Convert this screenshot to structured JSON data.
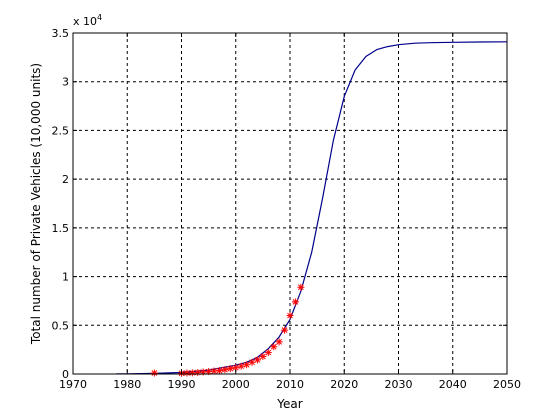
{
  "chart_data": {
    "type": "line",
    "xlabel": "Year",
    "ylabel": "Total number of Private Vehicles (10,000 units)",
    "y_multiplier_label": "x 10",
    "y_multiplier_exponent": "4",
    "xlim": [
      1970,
      2050
    ],
    "ylim": [
      0,
      3.5
    ],
    "y_scale_factor": 10000,
    "grid": true,
    "x_ticks": [
      1970,
      1980,
      1990,
      2000,
      2010,
      2020,
      2030,
      2040,
      2050
    ],
    "y_ticks": [
      0,
      0.5,
      1,
      1.5,
      2,
      2.5,
      3,
      3.5
    ],
    "y_tick_labels": [
      "0",
      "0.5",
      "1",
      "1.5",
      "2",
      "2.5",
      "3",
      "3.5"
    ],
    "series": [
      {
        "kind": "line",
        "color": "#00008b",
        "x": [
          1978,
          1980,
          1985,
          1990,
          1995,
          2000,
          2002,
          2004,
          2006,
          2008,
          2010,
          2012,
          2014,
          2016,
          2018,
          2020,
          2022,
          2024,
          2026,
          2028,
          2030,
          2033,
          2036,
          2040,
          2045,
          2050
        ],
        "y": [
          0.001,
          0.002,
          0.006,
          0.015,
          0.04,
          0.09,
          0.12,
          0.17,
          0.26,
          0.38,
          0.56,
          0.85,
          1.25,
          1.8,
          2.4,
          2.85,
          3.12,
          3.26,
          3.33,
          3.36,
          3.38,
          3.395,
          3.4,
          3.405,
          3.408,
          3.41
        ]
      },
      {
        "kind": "scatter",
        "marker": "*",
        "color": "#ff0000",
        "x": [
          1985,
          1990,
          1991,
          1992,
          1993,
          1994,
          1995,
          1996,
          1997,
          1998,
          1999,
          2000,
          2001,
          2002,
          2003,
          2004,
          2005,
          2006,
          2007,
          2008,
          2009,
          2010,
          2011,
          2012
        ],
        "y": [
          0.01,
          0.008,
          0.01,
          0.012,
          0.015,
          0.02,
          0.025,
          0.03,
          0.035,
          0.045,
          0.055,
          0.065,
          0.08,
          0.095,
          0.12,
          0.145,
          0.18,
          0.22,
          0.28,
          0.33,
          0.45,
          0.6,
          0.74,
          0.89
        ]
      }
    ]
  }
}
